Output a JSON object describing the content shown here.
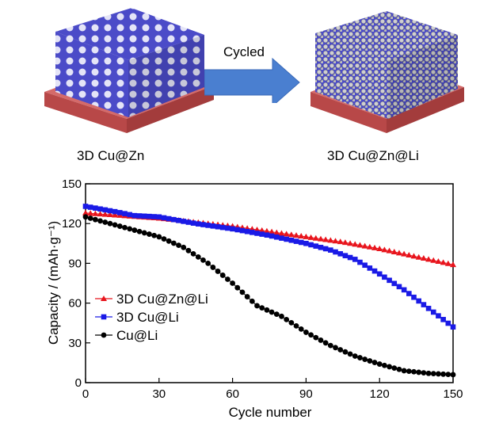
{
  "schematic": {
    "left_label": "3D Cu@Zn",
    "right_label": "3D Cu@Zn@Li",
    "arrow_label": "Cycled",
    "colors": {
      "substrate": "#c25555",
      "framework": "#4b4bc8",
      "lithium": "#c8c8c8",
      "arrow": "#4a7fd0"
    }
  },
  "chart_data": {
    "type": "line",
    "xlabel": "Cycle number",
    "ylabel": "Capacity / (mAh·g⁻¹)",
    "xlim": [
      0,
      150
    ],
    "ylim": [
      0,
      150
    ],
    "xticks": [
      "0",
      "30",
      "60",
      "90",
      "120",
      "150"
    ],
    "yticks": [
      "0",
      "30",
      "60",
      "90",
      "120",
      "150"
    ],
    "grid": false,
    "legend_position": "bottom-left",
    "series": [
      {
        "name": "3D Cu@Zn@Li",
        "color": "#e8141c",
        "marker": "triangle",
        "points": [
          [
            0,
            128
          ],
          [
            15,
            126
          ],
          [
            30,
            124
          ],
          [
            45,
            121
          ],
          [
            60,
            118
          ],
          [
            75,
            114
          ],
          [
            90,
            110
          ],
          [
            105,
            106
          ],
          [
            120,
            101
          ],
          [
            135,
            95
          ],
          [
            150,
            89
          ]
        ]
      },
      {
        "name": "3D Cu@Li",
        "color": "#1a1ae6",
        "marker": "square",
        "points": [
          [
            0,
            133
          ],
          [
            12,
            129
          ],
          [
            20,
            126
          ],
          [
            30,
            125
          ],
          [
            45,
            120
          ],
          [
            60,
            116
          ],
          [
            75,
            111
          ],
          [
            90,
            105
          ],
          [
            100,
            100
          ],
          [
            110,
            93
          ],
          [
            120,
            82
          ],
          [
            130,
            70
          ],
          [
            140,
            56
          ],
          [
            150,
            42
          ]
        ]
      },
      {
        "name": "Cu@Li",
        "color": "#000000",
        "marker": "circle",
        "points": [
          [
            0,
            125
          ],
          [
            10,
            120
          ],
          [
            20,
            115
          ],
          [
            30,
            110
          ],
          [
            40,
            102
          ],
          [
            50,
            90
          ],
          [
            60,
            75
          ],
          [
            70,
            58
          ],
          [
            80,
            50
          ],
          [
            90,
            38
          ],
          [
            100,
            28
          ],
          [
            110,
            20
          ],
          [
            120,
            14
          ],
          [
            130,
            9
          ],
          [
            140,
            7
          ],
          [
            150,
            6
          ]
        ]
      }
    ]
  }
}
